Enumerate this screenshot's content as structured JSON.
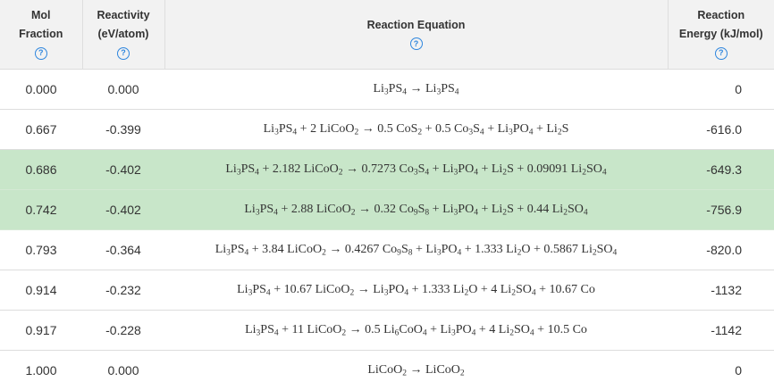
{
  "table": {
    "columns": [
      {
        "lines": [
          "Mol",
          "Fraction"
        ]
      },
      {
        "lines": [
          "Reactivity",
          "(eV/atom)"
        ]
      },
      {
        "lines": [
          "Reaction Equation"
        ]
      },
      {
        "lines": [
          "Reaction",
          "Energy (kJ/mol)"
        ]
      }
    ],
    "help_glyph": "?",
    "highlight_color": "#c8e6c9",
    "header_bg": "#f2f2f2",
    "help_icon_color": "#2e86de",
    "rows": [
      {
        "mol_fraction": "0.000",
        "reactivity": "0.000",
        "equation": "Li_{3}PS_{4} → Li_{3}PS_{4}",
        "energy": "0",
        "highlighted": false
      },
      {
        "mol_fraction": "0.667",
        "reactivity": "-0.399",
        "equation": "Li_{3}PS_{4} + 2 LiCoO_{2} → 0.5 CoS_{2} + 0.5 Co_{3}S_{4} + Li_{3}PO_{4} + Li_{2}S",
        "energy": "-616.0",
        "highlighted": false
      },
      {
        "mol_fraction": "0.686",
        "reactivity": "-0.402",
        "equation": "Li_{3}PS_{4} + 2.182 LiCoO_{2} → 0.7273 Co_{3}S_{4} + Li_{3}PO_{4} + Li_{2}S + 0.09091 Li_{2}SO_{4}",
        "energy": "-649.3",
        "highlighted": true
      },
      {
        "mol_fraction": "0.742",
        "reactivity": "-0.402",
        "equation": "Li_{3}PS_{4} + 2.88 LiCoO_{2} → 0.32 Co_{9}S_{8} + Li_{3}PO_{4} + Li_{2}S + 0.44 Li_{2}SO_{4}",
        "energy": "-756.9",
        "highlighted": true
      },
      {
        "mol_fraction": "0.793",
        "reactivity": "-0.364",
        "equation": "Li_{3}PS_{4} + 3.84 LiCoO_{2} → 0.4267 Co_{9}S_{8} + Li_{3}PO_{4} + 1.333 Li_{2}O + 0.5867 Li_{2}SO_{4}",
        "energy": "-820.0",
        "highlighted": false
      },
      {
        "mol_fraction": "0.914",
        "reactivity": "-0.232",
        "equation": "Li_{3}PS_{4} + 10.67 LiCoO_{2} → Li_{3}PO_{4} + 1.333 Li_{2}O + 4 Li_{2}SO_{4} + 10.67 Co",
        "energy": "-1132",
        "highlighted": false
      },
      {
        "mol_fraction": "0.917",
        "reactivity": "-0.228",
        "equation": "Li_{3}PS_{4} + 11 LiCoO_{2} → 0.5 Li_{6}CoO_{4} + Li_{3}PO_{4} + 4 Li_{2}SO_{4} + 10.5 Co",
        "energy": "-1142",
        "highlighted": false
      },
      {
        "mol_fraction": "1.000",
        "reactivity": "0.000",
        "equation": "LiCoO_{2} → LiCoO_{2}",
        "energy": "0",
        "highlighted": false
      }
    ]
  }
}
